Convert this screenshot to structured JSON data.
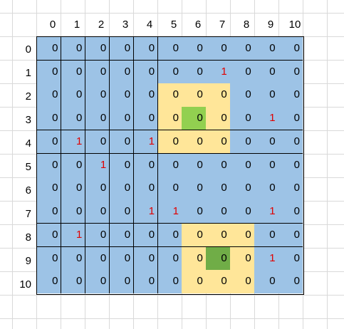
{
  "colors": {
    "blue": "#9dc3e6",
    "yellow": "#ffe699",
    "light_green": "#92d050",
    "dark_green": "#70ad47",
    "red_text": "#e00000",
    "black_text": "#000000"
  },
  "column_headers": [
    "0",
    "1",
    "2",
    "3",
    "4",
    "5",
    "6",
    "7",
    "8",
    "9",
    "10"
  ],
  "row_headers": [
    "0",
    "1",
    "2",
    "3",
    "4",
    "5",
    "6",
    "7",
    "8",
    "9",
    "10"
  ],
  "grid": [
    [
      "0",
      "0",
      "0",
      "0",
      "0",
      "0",
      "0",
      "0",
      "0",
      "0",
      "0"
    ],
    [
      "0",
      "0",
      "0",
      "0",
      "0",
      "0",
      "0",
      "1",
      "0",
      "0",
      "0"
    ],
    [
      "0",
      "0",
      "0",
      "0",
      "0",
      "0",
      "0",
      "0",
      "0",
      "0",
      "0"
    ],
    [
      "0",
      "0",
      "0",
      "0",
      "0",
      "0",
      "0",
      "0",
      "0",
      "1",
      "0"
    ],
    [
      "0",
      "1",
      "0",
      "0",
      "1",
      "0",
      "0",
      "0",
      "0",
      "0",
      "0"
    ],
    [
      "0",
      "0",
      "1",
      "0",
      "0",
      "0",
      "0",
      "0",
      "0",
      "0",
      "0"
    ],
    [
      "0",
      "0",
      "0",
      "0",
      "0",
      "0",
      "0",
      "0",
      "0",
      "0",
      "0"
    ],
    [
      "0",
      "0",
      "0",
      "0",
      "1",
      "1",
      "0",
      "0",
      "0",
      "1",
      "0"
    ],
    [
      "0",
      "1",
      "0",
      "0",
      "0",
      "0",
      "0",
      "0",
      "0",
      "0",
      "0"
    ],
    [
      "0",
      "0",
      "0",
      "0",
      "0",
      "0",
      "0",
      "0",
      "0",
      "1",
      "0"
    ],
    [
      "0",
      "0",
      "0",
      "0",
      "0",
      "0",
      "0",
      "0",
      "0",
      "0",
      "0"
    ]
  ],
  "highlighted_cells": [
    {
      "row": 2,
      "col": 5,
      "fill": "yellow"
    },
    {
      "row": 2,
      "col": 6,
      "fill": "yellow"
    },
    {
      "row": 2,
      "col": 7,
      "fill": "yellow"
    },
    {
      "row": 3,
      "col": 5,
      "fill": "yellow"
    },
    {
      "row": 3,
      "col": 6,
      "fill": "light_green"
    },
    {
      "row": 3,
      "col": 7,
      "fill": "yellow"
    },
    {
      "row": 4,
      "col": 5,
      "fill": "yellow"
    },
    {
      "row": 4,
      "col": 6,
      "fill": "yellow"
    },
    {
      "row": 4,
      "col": 7,
      "fill": "yellow"
    },
    {
      "row": 8,
      "col": 6,
      "fill": "yellow"
    },
    {
      "row": 8,
      "col": 7,
      "fill": "yellow"
    },
    {
      "row": 8,
      "col": 8,
      "fill": "yellow"
    },
    {
      "row": 9,
      "col": 6,
      "fill": "yellow"
    },
    {
      "row": 9,
      "col": 7,
      "fill": "dark_green"
    },
    {
      "row": 9,
      "col": 8,
      "fill": "yellow"
    },
    {
      "row": 10,
      "col": 6,
      "fill": "yellow"
    },
    {
      "row": 10,
      "col": 7,
      "fill": "yellow"
    },
    {
      "row": 10,
      "col": 8,
      "fill": "yellow"
    }
  ]
}
